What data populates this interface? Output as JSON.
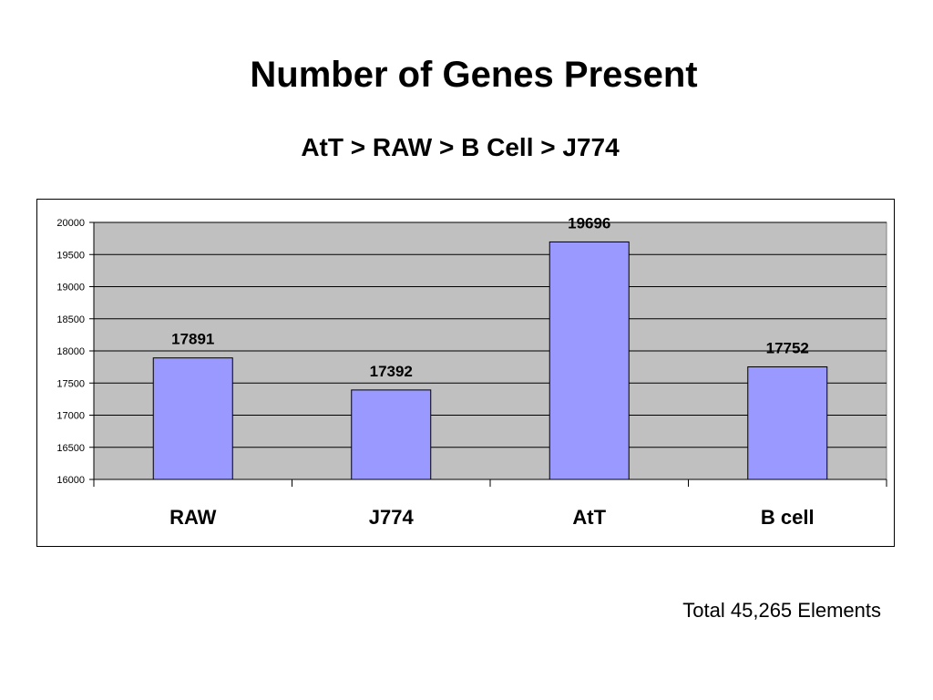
{
  "slide": {
    "title": "Number of Genes Present",
    "subtitle": "AtT > RAW > B Cell > J774",
    "footnote": "Total 45,265 Elements"
  },
  "chart_data": {
    "type": "bar",
    "categories": [
      "RAW",
      "J774",
      "AtT",
      "B cell"
    ],
    "values": [
      17891,
      17392,
      19696,
      17752
    ],
    "data_labels": [
      "17891",
      "17392",
      "19696",
      "17752"
    ],
    "ylim": [
      16000,
      20000
    ],
    "yticks": [
      "16000",
      "16500",
      "17000",
      "17500",
      "18000",
      "18500",
      "19000",
      "19500",
      "20000"
    ],
    "grid": true,
    "legend": "none",
    "colors": {
      "bar_fill": "#9999ff",
      "plot_background": "#c0c0c0",
      "bar_stroke": "#000000"
    }
  }
}
